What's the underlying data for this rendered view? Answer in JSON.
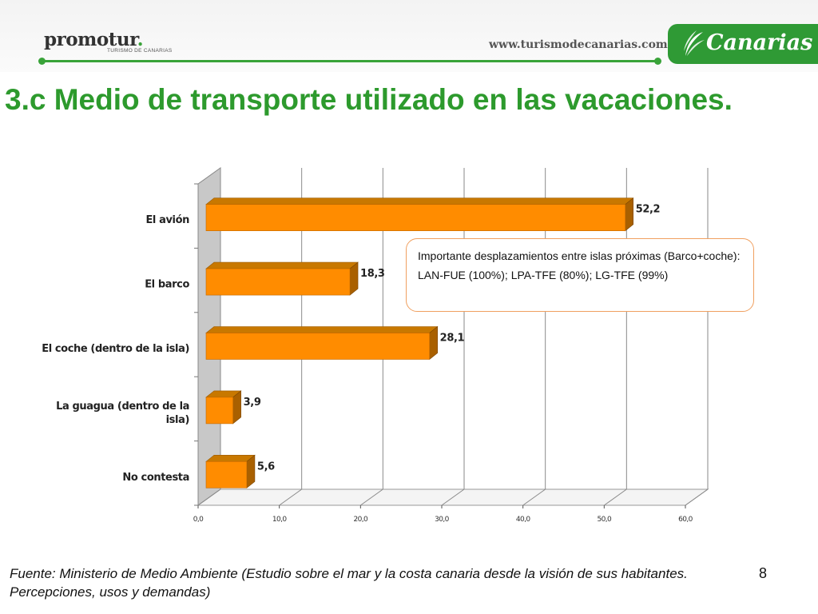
{
  "header": {
    "logo_main": "promotur",
    "logo_dot": ".",
    "logo_sub": "TURISMO DE CANARIAS",
    "site_url": "www.turismodecanarias.com",
    "brand_badge": "Canarias",
    "brand_color": "#2f9a35"
  },
  "slide": {
    "title": "3.c Medio de transporte utilizado en las vacaciones.",
    "title_color": "#2d9a2d",
    "page_number": "8"
  },
  "callout": {
    "line1": "Importante desplazamientos entre islas próximas (Barco+coche):",
    "line2": "LAN-FUE (100%); LPA-TFE (80%); LG-TFE (99%)"
  },
  "footer": {
    "source": "Fuente: Ministerio de Medio Ambiente (Estudio sobre el mar y la costa canaria desde la visión de sus habitantes. Percepciones, usos y demandas)"
  },
  "chart_data": {
    "type": "bar",
    "orientation": "horizontal",
    "style": "3d",
    "categories": [
      [
        "El avión"
      ],
      [
        "El barco"
      ],
      [
        "El coche (dentro de la isla)"
      ],
      [
        "La guagua (dentro de la",
        "isla)"
      ],
      [
        "No contesta"
      ]
    ],
    "values": [
      52.2,
      18.3,
      28.1,
      3.9,
      5.6
    ],
    "value_labels": [
      "52,2",
      "18,3",
      "28,1",
      "3,9",
      "5,6"
    ],
    "xlim": [
      0,
      60
    ],
    "xticks": [
      0,
      10,
      20,
      30,
      40,
      50,
      60
    ],
    "xtick_labels": [
      "0,0",
      "10,0",
      "20,0",
      "30,0",
      "40,0",
      "50,0",
      "60,0"
    ],
    "grid": true,
    "legend": "none",
    "bar_color": "#ff8c00"
  }
}
